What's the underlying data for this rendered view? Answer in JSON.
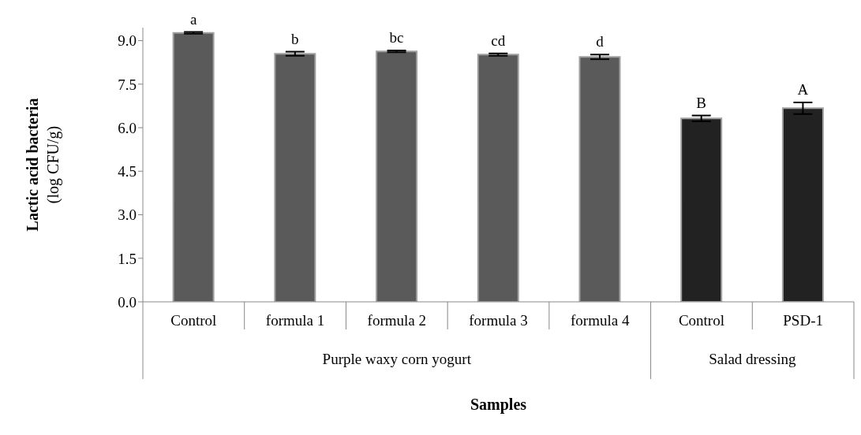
{
  "chart_data": {
    "type": "bar",
    "xlabel": "Samples",
    "ylabel": "Lactic acid bacteria\n(log CFU/g)",
    "categories": [
      "Control",
      "formula 1",
      "formula 2",
      "formula 3",
      "formula 4",
      "Control",
      "PSD-1"
    ],
    "values": [
      9.27,
      8.55,
      8.63,
      8.52,
      8.44,
      6.32,
      6.67
    ],
    "errors": [
      0.03,
      0.07,
      0.03,
      0.04,
      0.08,
      0.1,
      0.2
    ],
    "colors": [
      "#5a5a5a",
      "#5a5a5a",
      "#5a5a5a",
      "#5a5a5a",
      "#5a5a5a",
      "#222222",
      "#222222"
    ],
    "value_labels": [
      "a",
      "b",
      "bc",
      "cd",
      "d",
      "B",
      "A"
    ],
    "annotations": [
      "Purple waxy corn yogurt",
      "Salad dressing"
    ],
    "ylim": [
      0,
      9.45
    ],
    "yticks": [
      {
        "value": 0,
        "label": "0.0"
      },
      {
        "value": 1.5,
        "label": "1.5"
      },
      {
        "value": 3,
        "label": "3.0"
      },
      {
        "value": 4.5,
        "label": "4.5"
      },
      {
        "value": 6,
        "label": "6.0"
      },
      {
        "value": 7.5,
        "label": "7.5"
      },
      {
        "value": 9,
        "label": "9.0"
      }
    ],
    "grid": false,
    "legend": false
  }
}
